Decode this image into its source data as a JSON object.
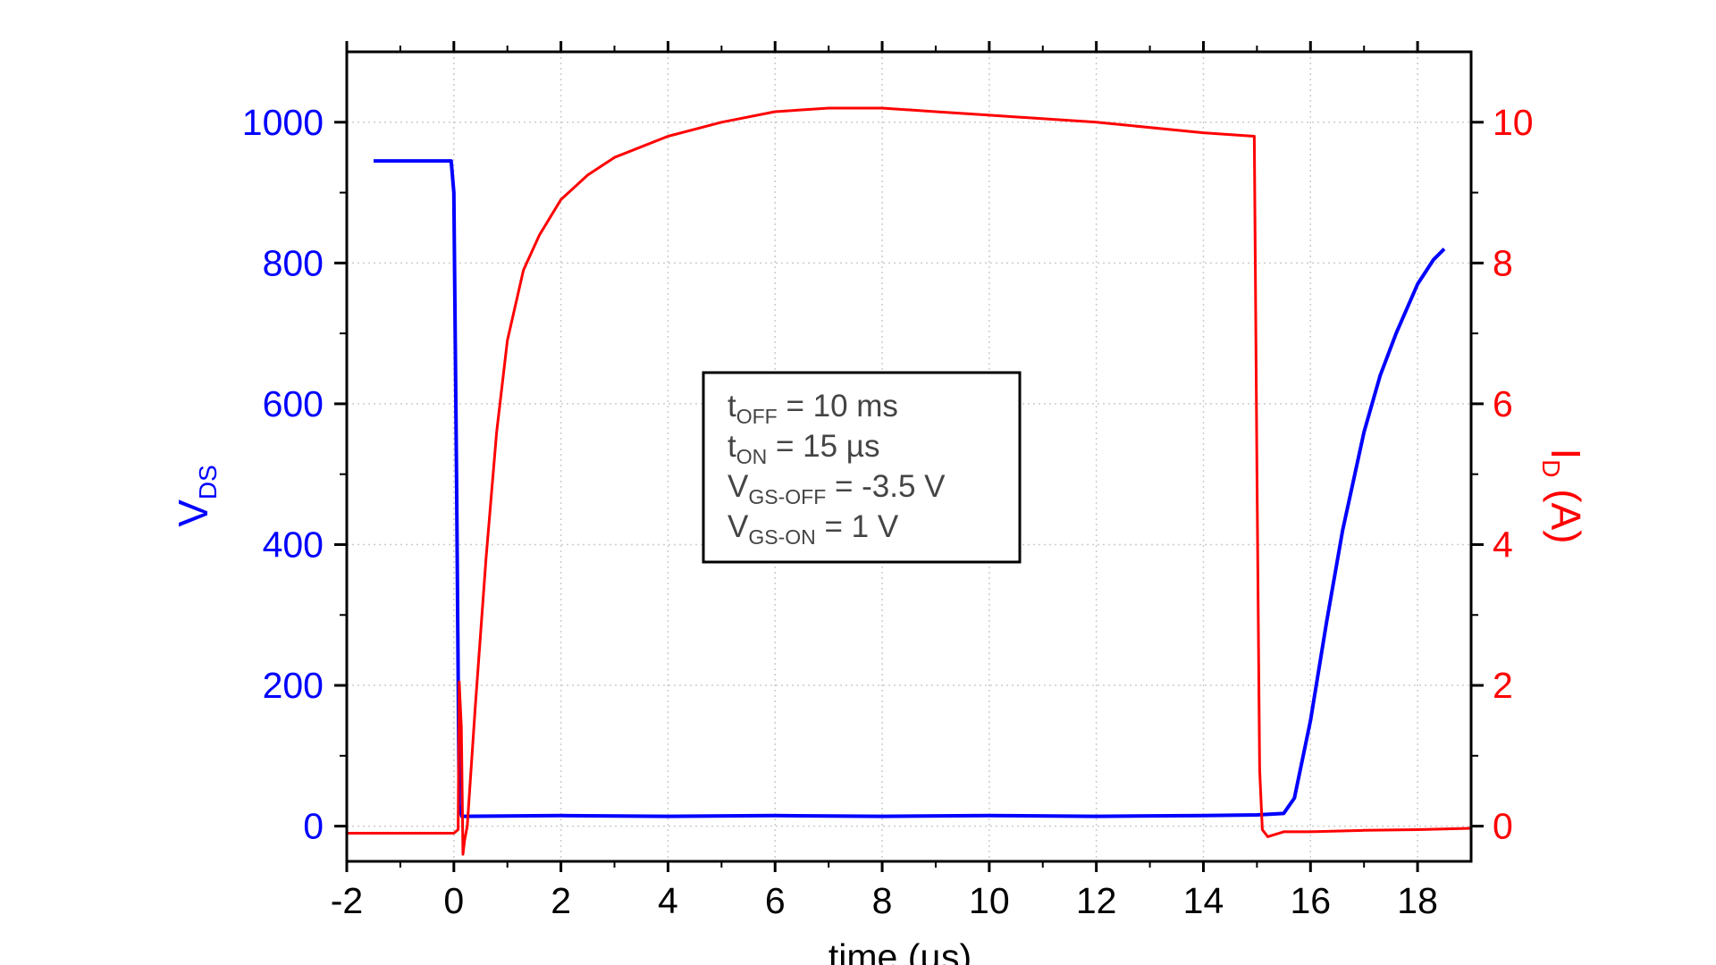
{
  "chart_data": {
    "type": "line",
    "xlabel": "time (µs)",
    "ylabel_left": {
      "main": "V",
      "sub": "DS"
    },
    "ylabel_right": {
      "main": "I",
      "sub": "D",
      "unit": " (A)"
    },
    "xlim": [
      -2,
      19
    ],
    "ylim_left": [
      -50,
      1100
    ],
    "ylim_right": [
      -0.5,
      11
    ],
    "xticks": [
      "-2",
      "0",
      "2",
      "4",
      "6",
      "8",
      "10",
      "12",
      "14",
      "16",
      "18"
    ],
    "yticks_left": [
      "0",
      "200",
      "400",
      "600",
      "800",
      "1000"
    ],
    "yticks_right": [
      "0",
      "2",
      "4",
      "6",
      "8",
      "10"
    ],
    "grid": true,
    "colors": {
      "vds": "#0000ff",
      "id": "#ff0000"
    },
    "annotation": [
      {
        "main": "t",
        "sub": "OFF",
        "rest": " = 10 ms"
      },
      {
        "main": "t",
        "sub": "ON",
        "rest": " = 15 µs"
      },
      {
        "main": "V",
        "sub": "GS-OFF",
        "rest": " = -3.5 V"
      },
      {
        "main": "V",
        "sub": "GS-ON",
        "rest": " = 1 V"
      }
    ],
    "series": [
      {
        "axis": "left",
        "x": [
          -1.5,
          -0.05,
          0.0,
          0.05,
          0.1,
          0.15,
          2,
          4,
          6,
          8,
          10,
          12,
          14,
          15,
          15.5,
          15.7,
          16,
          16.3,
          16.6,
          17,
          17.3,
          17.6,
          18,
          18.3,
          18.5
        ],
        "y": [
          945,
          945,
          900,
          500,
          30,
          14,
          15,
          14,
          15,
          14,
          15,
          14,
          15,
          16,
          18,
          40,
          150,
          290,
          420,
          560,
          640,
          700,
          770,
          805,
          820
        ]
      },
      {
        "axis": "right",
        "x": [
          -2,
          -1,
          0,
          0.08,
          0.1,
          0.14,
          0.17,
          0.2,
          0.25,
          0.4,
          0.6,
          0.8,
          1.0,
          1.3,
          1.6,
          2,
          2.5,
          3,
          4,
          5,
          6,
          7,
          8,
          9,
          10,
          12,
          14,
          14.95,
          15.0,
          15.05,
          15.1,
          15.2,
          15.5,
          16,
          17,
          18,
          19
        ],
        "y": [
          -0.1,
          -0.1,
          -0.1,
          -0.05,
          2.05,
          1.4,
          -0.4,
          -0.2,
          0.0,
          1.7,
          3.8,
          5.6,
          6.9,
          7.9,
          8.4,
          8.9,
          9.25,
          9.5,
          9.8,
          10.0,
          10.15,
          10.2,
          10.2,
          10.15,
          10.1,
          10.0,
          9.85,
          9.8,
          5.0,
          0.8,
          -0.05,
          -0.15,
          -0.08,
          -0.08,
          -0.06,
          -0.05,
          -0.03
        ]
      }
    ]
  }
}
